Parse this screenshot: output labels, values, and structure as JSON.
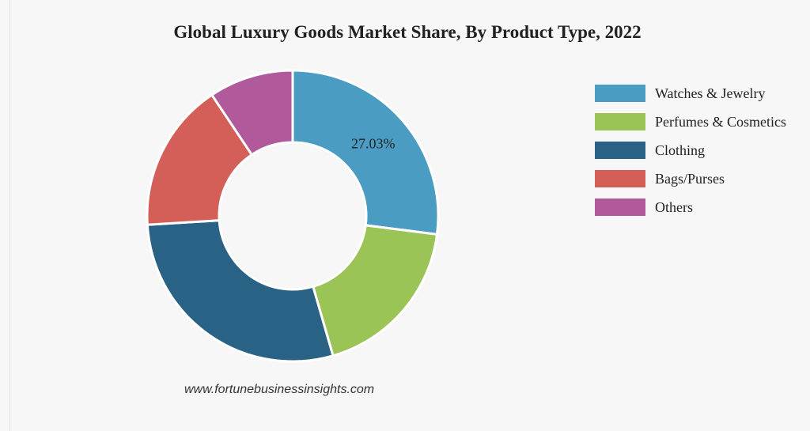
{
  "chart_data": {
    "type": "pie",
    "title": "Global Luxury Goods Market Share, By Product Type, 2022",
    "donut": true,
    "categories": [
      "Watches & Jewelry",
      "Perfumes & Cosmetics",
      "Clothing",
      "Bags/Purses",
      "Others"
    ],
    "values": [
      27.03,
      18.5,
      28.5,
      16.6,
      9.37
    ],
    "colors": [
      "#4a9cc3",
      "#9bc456",
      "#2a6285",
      "#d45f58",
      "#b05a9c"
    ],
    "data_labels": [
      "27.03%",
      "",
      "",
      "",
      ""
    ],
    "legend_position": "right"
  },
  "source": "www.fortunebusinessinsights.com"
}
